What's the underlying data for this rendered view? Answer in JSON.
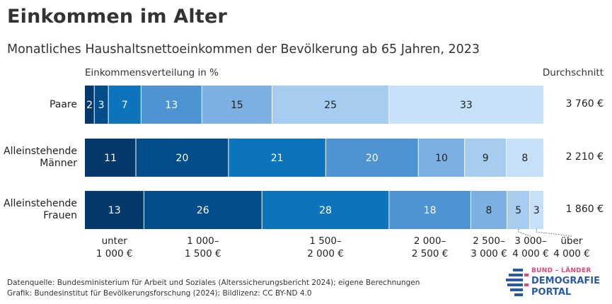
{
  "title": "Einkommen im Alter",
  "subtitle": "Monatliches Haushaltsnettoeinkommen der Bevölkerung ab 65 Jahren, 2023",
  "column_heads": {
    "distribution": "Einkommensverteilung in %",
    "average": "Durchschnitt"
  },
  "footer": {
    "source": "Datenquelle: Bundesministerium für Arbeit und Soziales (Alterssicherungsbericht 2024); eigene Berechnungen",
    "credit": "Grafik: Bundesinstitut für Bevölkerungsforschung (2024); Bildlizenz: CC BY-ND 4.0"
  },
  "logo": {
    "top": "BUND – LÄNDER",
    "mid": "DEMOGRAFIE",
    "bot": "PORTAL"
  },
  "chart_data": {
    "type": "bar",
    "orientation": "horizontal-stacked",
    "unit": "%",
    "categories": [
      {
        "label_lines": [
          "unter",
          "1 000 €"
        ]
      },
      {
        "label_lines": [
          "1 000–",
          "1 500 €"
        ]
      },
      {
        "label_lines": [
          "1 500–",
          "2 000 €"
        ]
      },
      {
        "label_lines": [
          "2 000–",
          "2 500 €"
        ]
      },
      {
        "label_lines": [
          "2 500–",
          "3 000 €"
        ]
      },
      {
        "label_lines": [
          "3 000–",
          "4 000 €"
        ]
      },
      {
        "label_lines": [
          "über",
          "4 000 €"
        ]
      }
    ],
    "colors": [
      "#06396b",
      "#034e8a",
      "#0d74bb",
      "#4e93d2",
      "#7db0e2",
      "#a6cdf0",
      "#c5e0f7"
    ],
    "text_colors": [
      "#ffffff",
      "#ffffff",
      "#ffffff",
      "#ffffff",
      "#222222",
      "#222222",
      "#222222"
    ],
    "series": [
      {
        "label_lines": [
          "Paare"
        ],
        "values": [
          2,
          3,
          7,
          13,
          15,
          25,
          33
        ],
        "average": "3 760 €"
      },
      {
        "label_lines": [
          "Alleinstehende",
          "Männer"
        ],
        "values": [
          11,
          20,
          21,
          20,
          10,
          9,
          8
        ],
        "average": "2 210 €"
      },
      {
        "label_lines": [
          "Alleinstehende",
          "Frauen"
        ],
        "values": [
          13,
          26,
          28,
          18,
          8,
          5,
          3
        ],
        "average": "1 860 €"
      }
    ]
  }
}
